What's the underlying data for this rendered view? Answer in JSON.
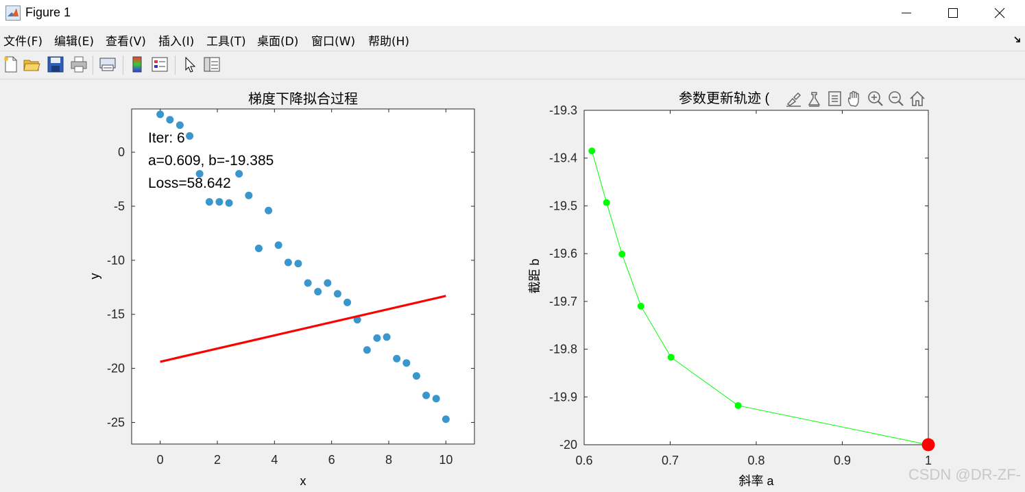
{
  "window": {
    "title": "Figure 1"
  },
  "menu": [
    "文件(F)",
    "编辑(E)",
    "查看(V)",
    "插入(I)",
    "工具(T)",
    "桌面(D)",
    "窗口(W)",
    "帮助(H)"
  ],
  "toolbar_icons": [
    "new-figure-icon",
    "open-file-icon",
    "save-icon",
    "print-icon",
    "link-plot-icon",
    "insert-colorbar-icon",
    "insert-legend-icon",
    "edit-plot-pointer-icon",
    "property-inspector-icon"
  ],
  "axes_toolbar_icons": [
    "brush-icon",
    "data-tips-icon",
    "export-icon",
    "pan-icon",
    "zoom-in-icon",
    "zoom-out-icon",
    "home-icon"
  ],
  "watermark": "CSDN @DR-ZF-",
  "chart_data": [
    {
      "type": "scatter",
      "title": "梯度下降拟合过程",
      "xlabel": "x",
      "ylabel": "y",
      "xlim": [
        -1,
        11
      ],
      "ylim": [
        -27,
        4
      ],
      "xticks": [
        0,
        2,
        4,
        6,
        8,
        10
      ],
      "yticks": [
        0,
        -5,
        -10,
        -15,
        -20,
        -25
      ],
      "annotations": [
        "Iter: 6",
        "a=0.609, b=-19.385",
        "Loss=58.642"
      ],
      "points_color": "#3a96cc",
      "x": [
        0.0,
        0.34,
        0.69,
        1.03,
        1.38,
        1.72,
        2.07,
        2.41,
        2.76,
        3.1,
        3.45,
        3.79,
        4.14,
        4.48,
        4.83,
        5.17,
        5.52,
        5.86,
        6.21,
        6.55,
        6.9,
        7.24,
        7.59,
        7.93,
        8.28,
        8.62,
        8.97,
        9.31,
        9.66,
        10.0
      ],
      "y": [
        3.5,
        3.0,
        2.5,
        1.5,
        -2.0,
        -4.6,
        -4.6,
        -4.7,
        -2.0,
        -4.0,
        -8.9,
        -5.4,
        -8.6,
        -10.2,
        -10.3,
        -12.1,
        -12.9,
        -12.1,
        -13.1,
        -13.9,
        -15.5,
        -18.3,
        -17.2,
        -17.1,
        -19.1,
        -19.5,
        -20.7,
        -22.5,
        -22.8,
        -24.7
      ],
      "fit_line": {
        "a": 0.609,
        "b": -19.385,
        "x_range": [
          0,
          10
        ],
        "color": "#ff0000"
      }
    },
    {
      "type": "line",
      "title": "参数更新轨迹 (",
      "xlabel": "斜率 a",
      "ylabel": "截距 b",
      "xlim": [
        0.6,
        1.0
      ],
      "ylim": [
        -20.0,
        -19.3
      ],
      "xticks": [
        "0.6",
        "0.7",
        "0.8",
        "0.9",
        "1"
      ],
      "yticks": [
        "-19.3",
        "-19.4",
        "-19.5",
        "-19.6",
        "-19.7",
        "-19.8",
        "-19.9",
        "-20"
      ],
      "series": [
        {
          "color": "#00ff00",
          "x": [
            1.0,
            0.779,
            0.701,
            0.666,
            0.644,
            0.626,
            0.609
          ],
          "y": [
            -20.0,
            -19.918,
            -19.817,
            -19.71,
            -19.601,
            -19.493,
            -19.385
          ]
        }
      ],
      "start_marker": {
        "x": 1.0,
        "y": -20.0,
        "color": "#ff0000"
      }
    }
  ]
}
